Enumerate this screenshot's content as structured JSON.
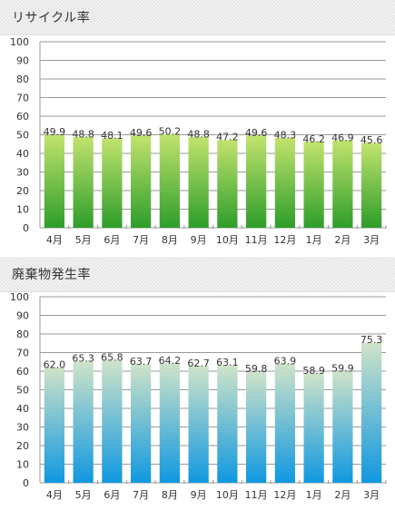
{
  "charts": [
    {
      "title": "リサイクル率",
      "chart_data": {
        "type": "bar",
        "categories": [
          "4月",
          "5月",
          "6月",
          "7月",
          "8月",
          "9月",
          "10月",
          "11月",
          "12月",
          "1月",
          "2月",
          "3月"
        ],
        "values": [
          49.9,
          48.8,
          48.1,
          49.6,
          50.2,
          48.8,
          47.2,
          49.6,
          48.3,
          46.2,
          46.9,
          45.6
        ],
        "ylim": [
          0,
          100
        ],
        "yticks": [
          0,
          10,
          20,
          30,
          40,
          50,
          60,
          70,
          80,
          90,
          100
        ],
        "grid": true,
        "colors": {
          "top": "#c2e36e",
          "bottom": "#2e9d2a"
        }
      }
    },
    {
      "title": "廃棄物発生率",
      "chart_data": {
        "type": "bar",
        "categories": [
          "4月",
          "5月",
          "6月",
          "7月",
          "8月",
          "9月",
          "10月",
          "11月",
          "12月",
          "1月",
          "2月",
          "3月"
        ],
        "values": [
          62.0,
          65.3,
          65.8,
          63.7,
          64.2,
          62.7,
          63.1,
          59.8,
          63.9,
          58.9,
          59.9,
          75.3
        ],
        "ylim": [
          0,
          100
        ],
        "yticks": [
          0,
          10,
          20,
          30,
          40,
          50,
          60,
          70,
          80,
          90,
          100
        ],
        "grid": true,
        "colors": {
          "top": "#cfe3c8",
          "bottom": "#1098e0"
        }
      }
    }
  ]
}
